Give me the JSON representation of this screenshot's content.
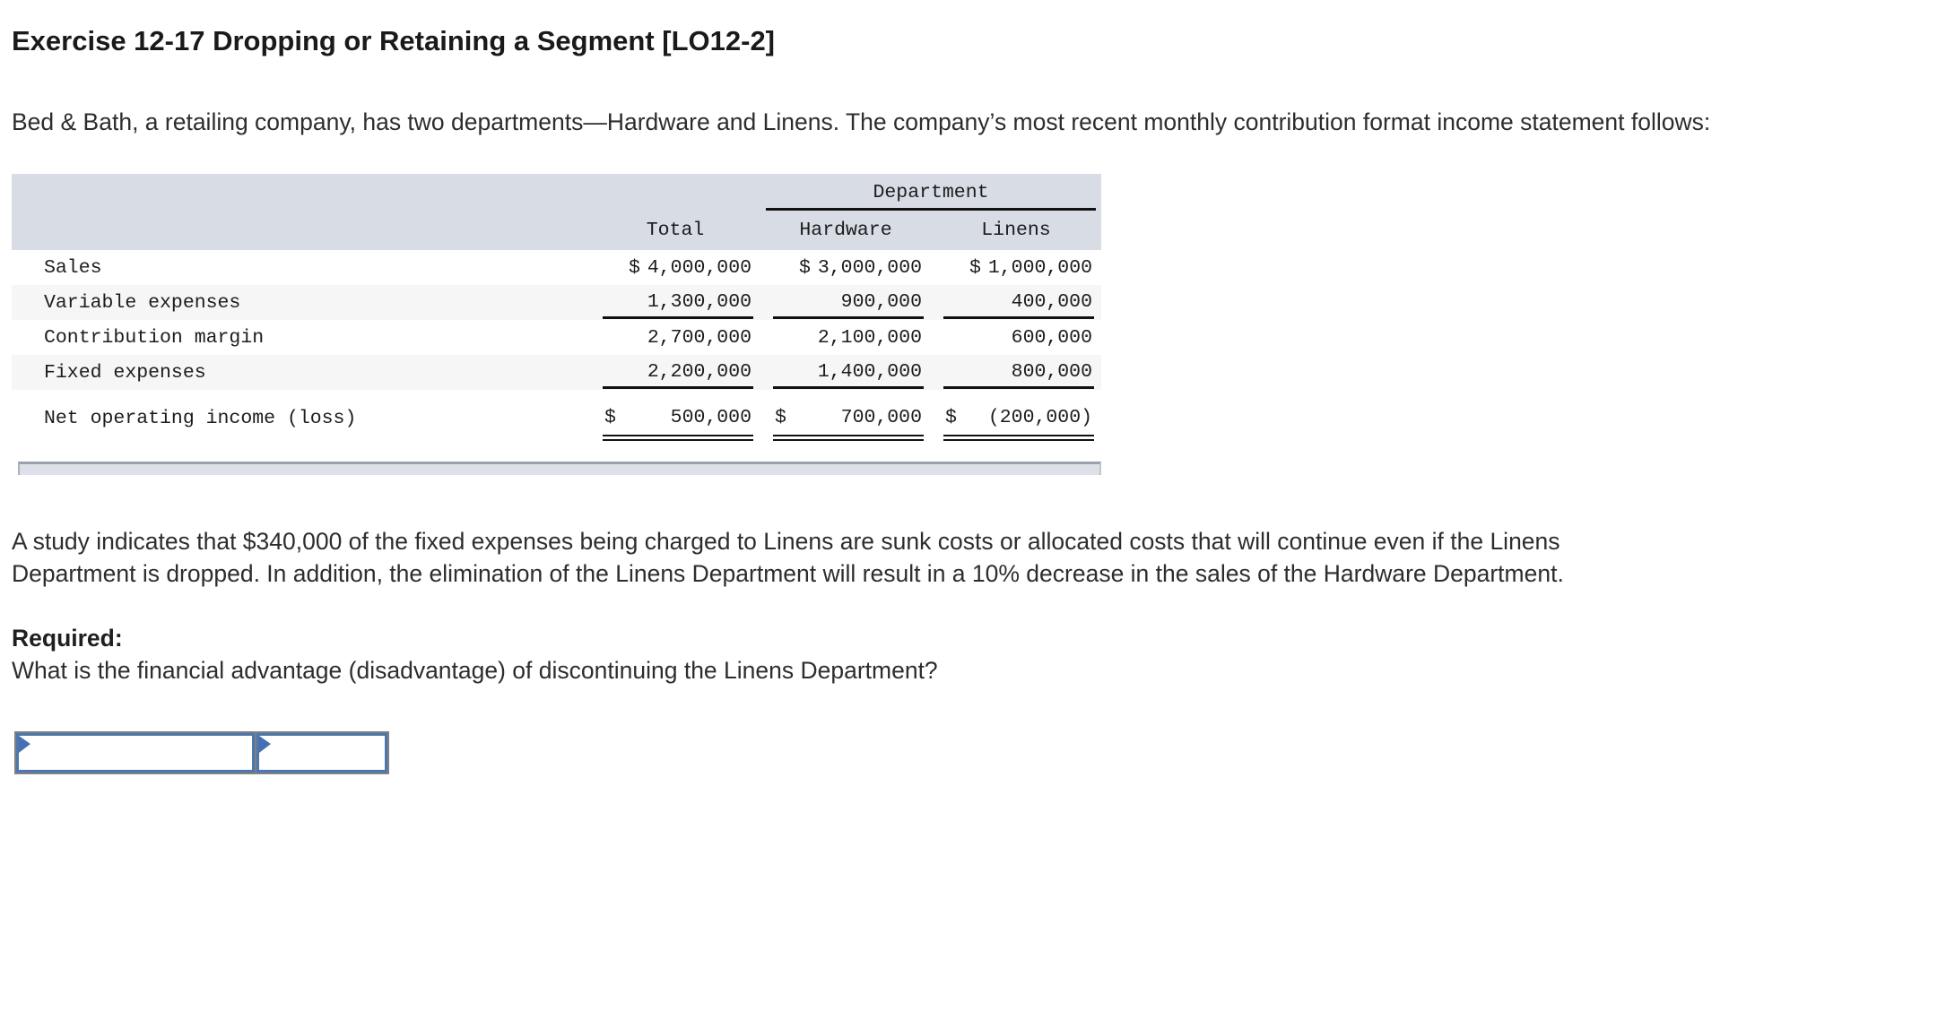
{
  "page": {
    "title": "Exercise 12-17 Dropping or Retaining a Segment [LO12-2]",
    "intro": "Bed & Bath, a retailing company, has two departments—Hardware and Linens. The company’s most recent monthly contribution format income statement follows:",
    "study_note": "A study indicates that $340,000 of the fixed expenses being charged to Linens are sunk costs or allocated costs that will continue even if the Linens Department is dropped. In addition, the elimination of the Linens Department will result in a 10% decrease in the sales of the Hardware Department.",
    "required_label": "Required:",
    "question": "What is the financial advantage (disadvantage) of discontinuing the Linens Department?"
  },
  "statement_table": {
    "group_header": "Department",
    "col_headers": {
      "total": "Total",
      "hardware": "Hardware",
      "linens": "Linens"
    },
    "rows": [
      {
        "label": "Sales",
        "total_cur": "$",
        "total": "4,000,000",
        "hardware_cur": "$",
        "hardware": "3,000,000",
        "linens_cur": "$",
        "linens": "1,000,000"
      },
      {
        "label": "Variable expenses",
        "total": "1,300,000",
        "hardware": "900,000",
        "linens": "400,000"
      },
      {
        "label": "Contribution margin",
        "total": "2,700,000",
        "hardware": "2,100,000",
        "linens": "600,000"
      },
      {
        "label": "Fixed expenses",
        "total": "2,200,000",
        "hardware": "1,400,000",
        "linens": "800,000"
      },
      {
        "label": "Net operating income (loss)",
        "total_cur": "$",
        "total": "500,000",
        "hardware_cur": "$",
        "hardware": "700,000",
        "linens_cur": "$",
        "linens": "(200,000)"
      }
    ]
  },
  "answer": {
    "cells": [
      {
        "value": ""
      },
      {
        "value": ""
      }
    ]
  },
  "colors": {
    "table_header_bg": "#d8dce5",
    "row_stripe_bg": "#f6f6f6",
    "rule_color": "#111111",
    "scrollbar_bg": "#dde0e8",
    "scrollbar_border": "#9aa1ab",
    "input_border_blue": "#4d77ae",
    "input_outer_gray": "#808080",
    "flag_blue": "#4470b4"
  }
}
